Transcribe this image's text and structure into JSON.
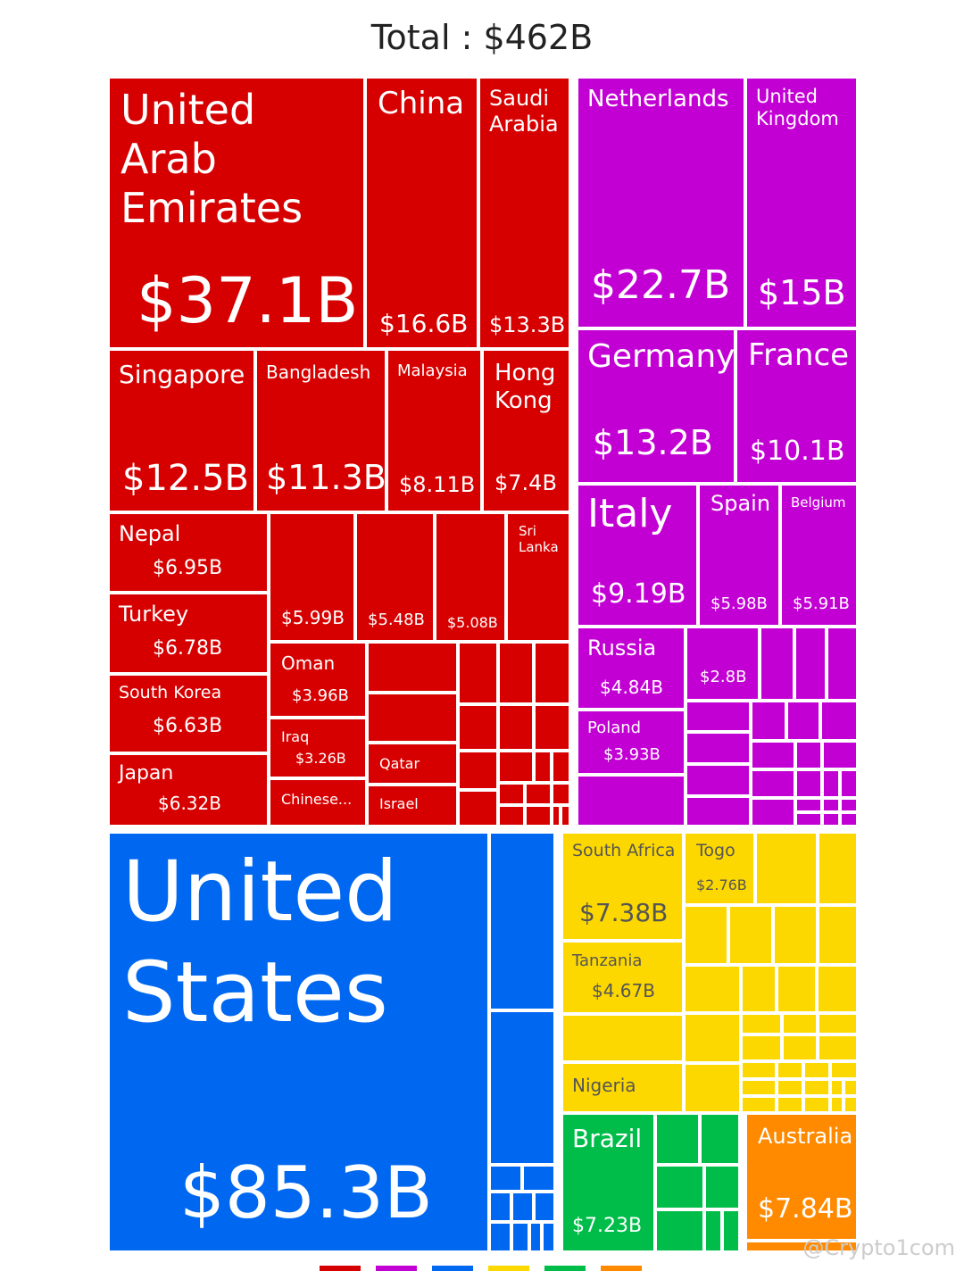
{
  "chart_data": {
    "type": "treemap",
    "title": "Total : $462B",
    "colors": {
      "asia": "#d60000",
      "europe": "#c300d4",
      "north-america": "#0068f0",
      "africa": "#fdd800",
      "south-america": "#00bd4a",
      "oceania": "#ff8a00"
    },
    "items": [
      {
        "name": "United Arab Emirates",
        "value": "$37.1B",
        "group": "asia"
      },
      {
        "name": "China",
        "value": "$16.6B",
        "group": "asia"
      },
      {
        "name": "Saudi Arabia",
        "value": "$13.3B",
        "group": "asia"
      },
      {
        "name": "Singapore",
        "value": "$12.5B",
        "group": "asia"
      },
      {
        "name": "Bangladesh",
        "value": "$11.3B",
        "group": "asia"
      },
      {
        "name": "Malaysia",
        "value": "$8.11B",
        "group": "asia"
      },
      {
        "name": "Hong Kong",
        "value": "$7.4B",
        "group": "asia"
      },
      {
        "name": "Nepal",
        "value": "$6.95B",
        "group": "asia"
      },
      {
        "name": "Turkey",
        "value": "$6.78B",
        "group": "asia"
      },
      {
        "name": "South Korea",
        "value": "$6.63B",
        "group": "asia"
      },
      {
        "name": "Japan",
        "value": "$6.32B",
        "group": "asia"
      },
      {
        "name": "",
        "value": "$5.99B",
        "group": "asia"
      },
      {
        "name": "",
        "value": "$5.48B",
        "group": "asia"
      },
      {
        "name": "",
        "value": "$5.08B",
        "group": "asia"
      },
      {
        "name": "Sri Lanka",
        "value": "",
        "group": "asia"
      },
      {
        "name": "Oman",
        "value": "$3.96B",
        "group": "asia"
      },
      {
        "name": "Iraq",
        "value": "$3.26B",
        "group": "asia"
      },
      {
        "name": "Chinese...",
        "value": "",
        "group": "asia"
      },
      {
        "name": "Qatar",
        "value": "",
        "group": "asia"
      },
      {
        "name": "Israel",
        "value": "",
        "group": "asia"
      },
      {
        "name": "Netherlands",
        "value": "$22.7B",
        "group": "europe"
      },
      {
        "name": "United Kingdom",
        "value": "$15B",
        "group": "europe"
      },
      {
        "name": "Germany",
        "value": "$13.2B",
        "group": "europe"
      },
      {
        "name": "France",
        "value": "$10.1B",
        "group": "europe"
      },
      {
        "name": "Italy",
        "value": "$9.19B",
        "group": "europe"
      },
      {
        "name": "Spain",
        "value": "$5.98B",
        "group": "europe"
      },
      {
        "name": "Belgium",
        "value": "$5.91B",
        "group": "europe"
      },
      {
        "name": "Russia",
        "value": "$4.84B",
        "group": "europe"
      },
      {
        "name": "",
        "value": "$2.8B",
        "group": "europe"
      },
      {
        "name": "Poland",
        "value": "$3.93B",
        "group": "europe"
      },
      {
        "name": "United States",
        "value": "$85.3B",
        "group": "north-america"
      },
      {
        "name": "South Africa",
        "value": "$7.38B",
        "group": "africa"
      },
      {
        "name": "Togo",
        "value": "$2.76B",
        "group": "africa"
      },
      {
        "name": "Tanzania",
        "value": "$4.67B",
        "group": "africa"
      },
      {
        "name": "Nigeria",
        "value": "",
        "group": "africa"
      },
      {
        "name": "Brazil",
        "value": "$7.23B",
        "group": "south-america"
      },
      {
        "name": "Australia",
        "value": "$7.84B",
        "group": "oceania"
      }
    ],
    "legend": [
      "asia",
      "europe",
      "north-america",
      "africa",
      "south-america",
      "oceania"
    ]
  },
  "watermark": "@Crypto1com"
}
